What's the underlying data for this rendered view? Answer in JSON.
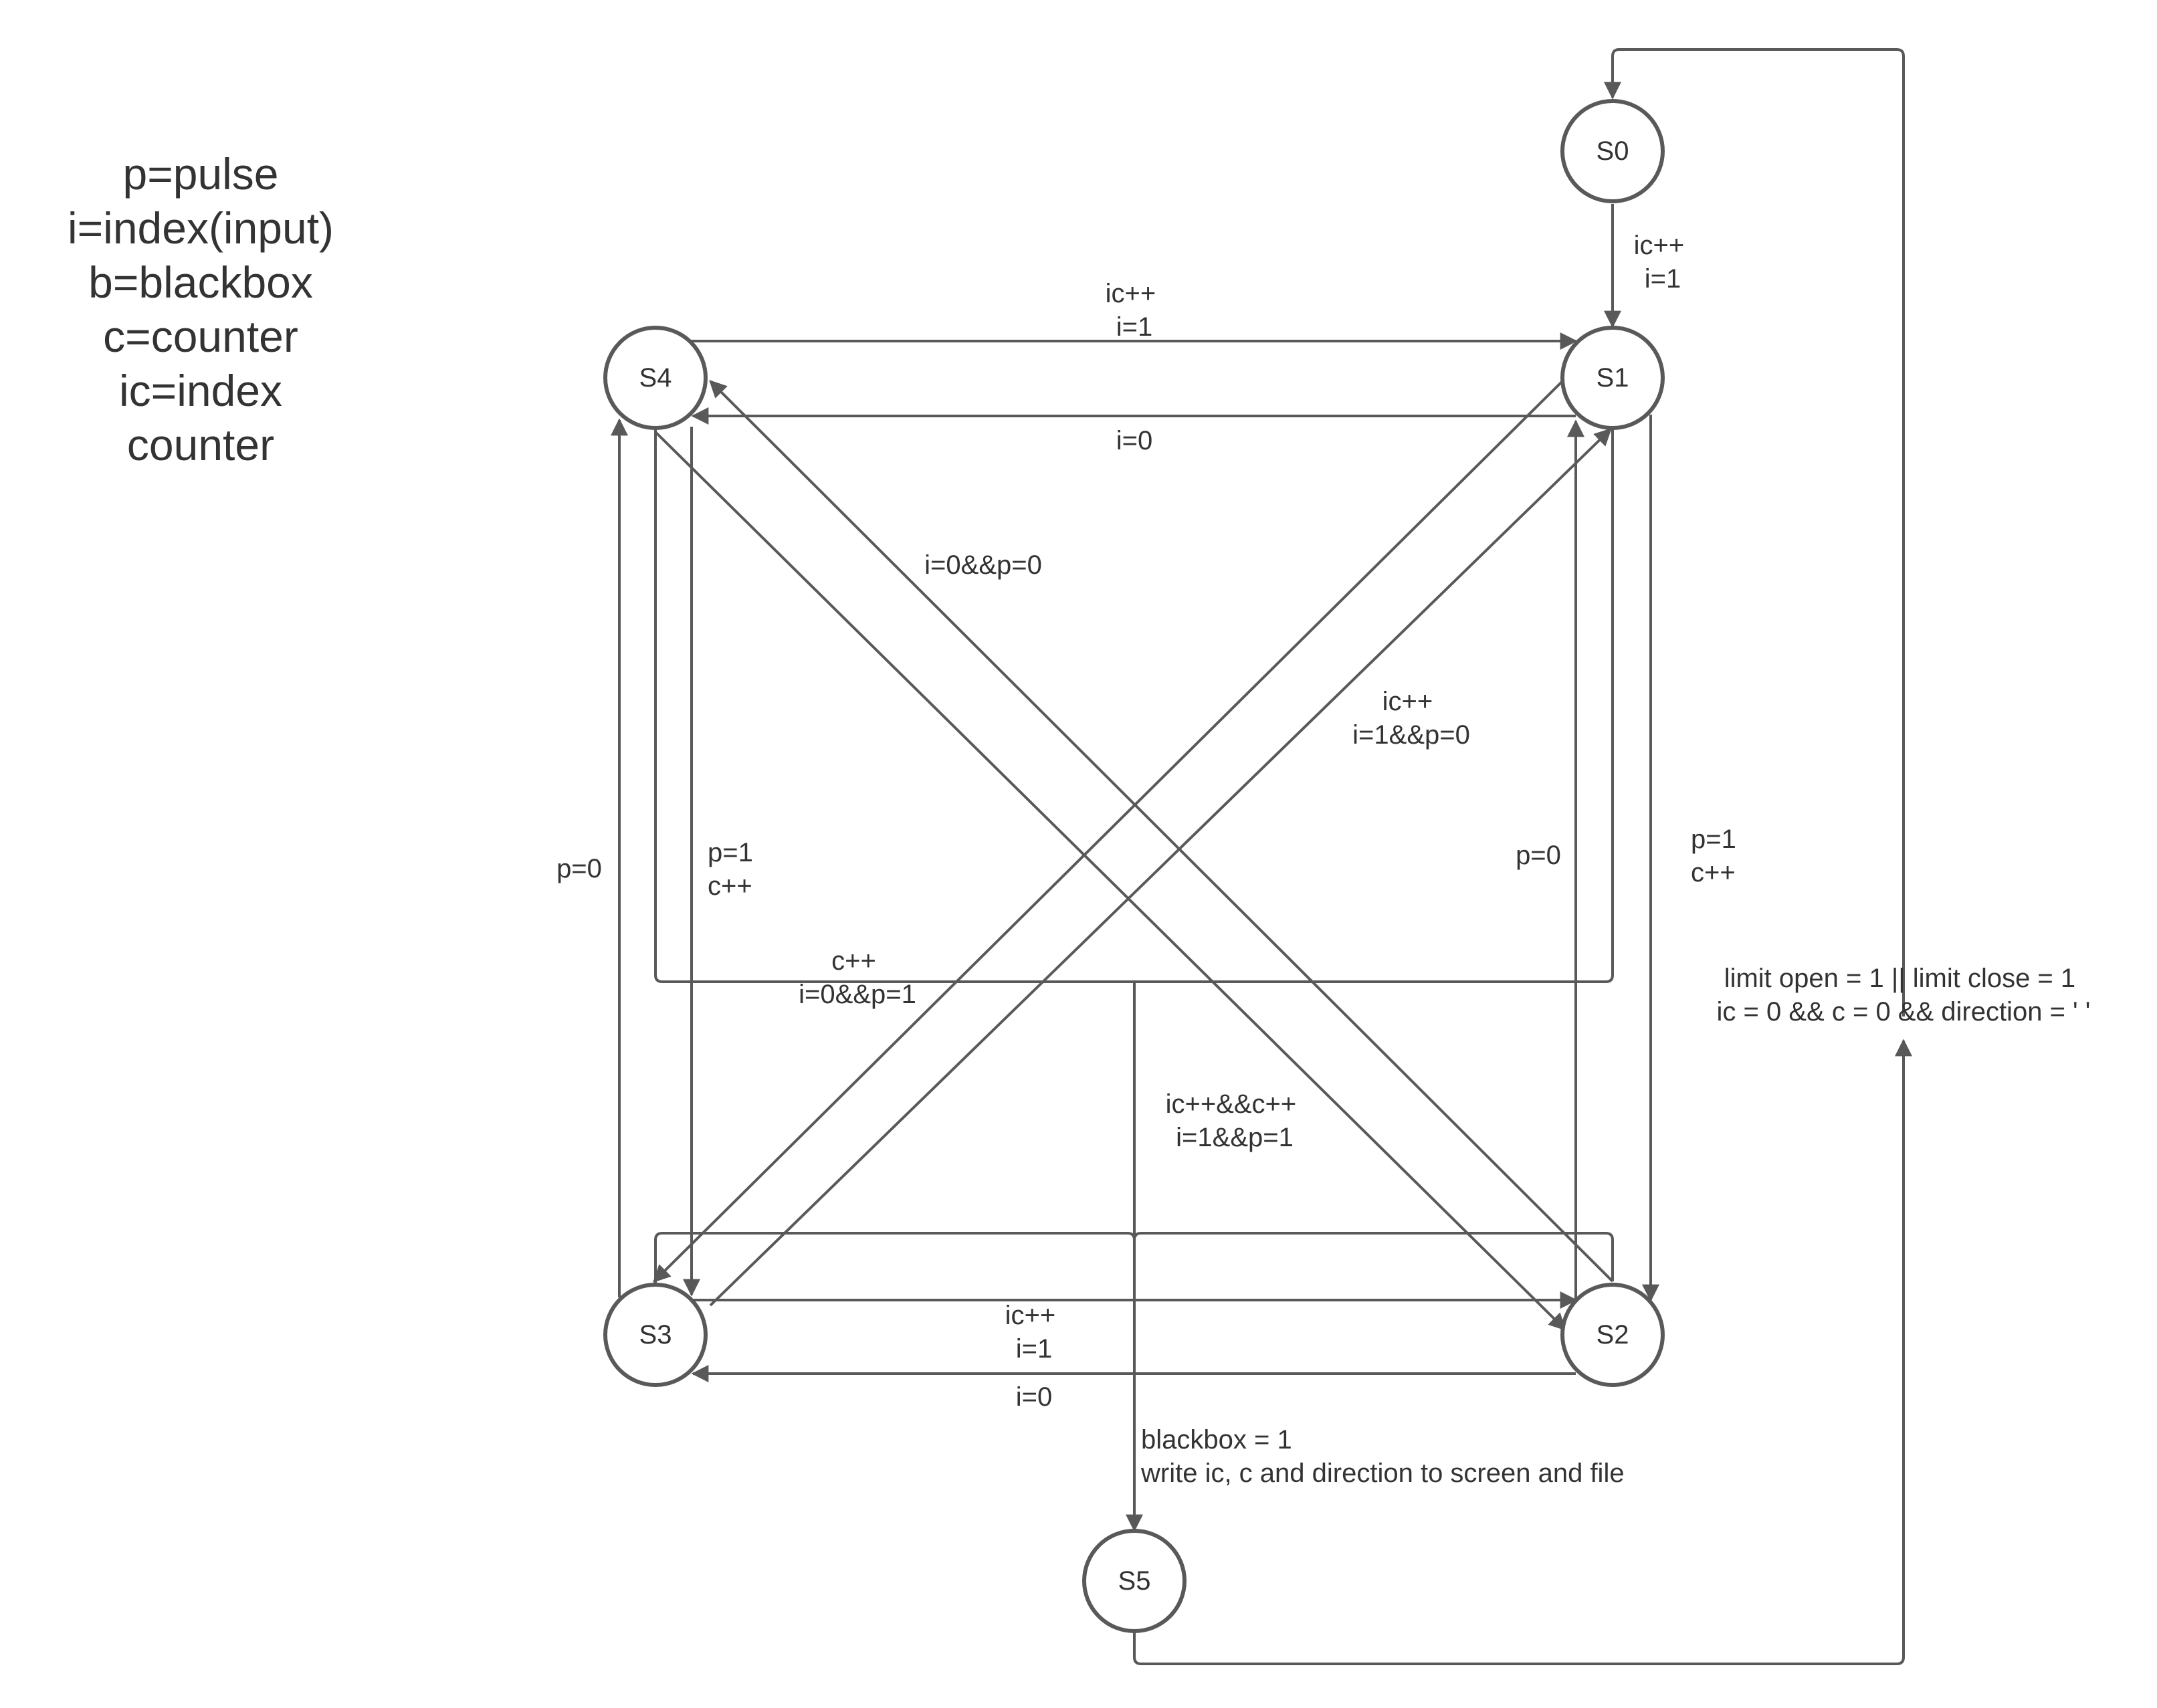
{
  "legend": [
    "p=pulse",
    "i=index(input)",
    "b=blackbox",
    "c=counter",
    "ic=index",
    "counter"
  ],
  "states": {
    "s0": "S0",
    "s1": "S1",
    "s2": "S2",
    "s3": "S3",
    "s4": "S4",
    "s5": "S5"
  },
  "edges": {
    "s0_s1": [
      "ic++",
      "i=1"
    ],
    "s4_s1": [
      "ic++",
      "i=1"
    ],
    "s1_s4": [
      "i=0"
    ],
    "s2_s4": [
      "i=0&&p=0"
    ],
    "s3_s1": [
      "ic++",
      "i=1&&p=0"
    ],
    "s3_s4": [
      "p=0"
    ],
    "s4_s3": [
      "p=1",
      "c++"
    ],
    "s2_s1": [
      "p=0"
    ],
    "s1_s2": [
      "p=1",
      "c++"
    ],
    "top_to_s5": [
      "c++",
      "i=0&&p=1"
    ],
    "s4_s2": [
      "ic++&&c++",
      "i=1&&p=1"
    ],
    "s3_s2": [
      "ic++",
      "i=1"
    ],
    "s2_s3": [
      "i=0"
    ],
    "to_s5": [
      "blackbox = 1",
      "write ic, c and direction to screen and file"
    ],
    "s5_s0": [
      "limit open = 1 || limit close = 1",
      "ic = 0 && c = 0 && direction = ' '"
    ]
  },
  "colors": {
    "stroke": "#595959",
    "text": "#333333",
    "background": "#ffffff"
  }
}
